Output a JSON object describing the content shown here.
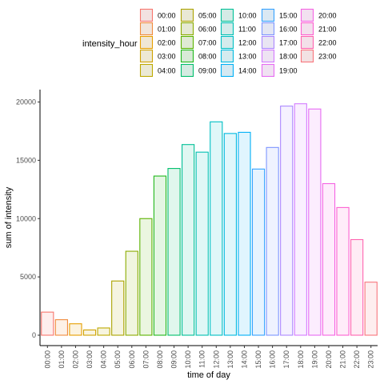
{
  "chart_data": {
    "type": "bar",
    "xlabel": "time of day",
    "ylabel": "sum of intensity",
    "ylim": [
      0,
      21000
    ],
    "yticks": [
      0,
      5000,
      10000,
      15000,
      20000
    ],
    "grid": false,
    "legend": {
      "title": "intensity_hour",
      "placement": "top",
      "ncol": 5
    },
    "categories": [
      "00:00",
      "01:00",
      "02:00",
      "03:00",
      "04:00",
      "05:00",
      "06:00",
      "07:00",
      "08:00",
      "09:00",
      "10:00",
      "11:00",
      "12:00",
      "13:00",
      "14:00",
      "15:00",
      "16:00",
      "17:00",
      "18:00",
      "19:00",
      "20:00",
      "21:00",
      "22:00",
      "23:00"
    ],
    "values": [
      1980,
      1330,
      980,
      450,
      620,
      4650,
      7200,
      10000,
      13650,
      14300,
      16350,
      15700,
      18300,
      17300,
      17400,
      14250,
      16100,
      19650,
      19850,
      19400,
      13000,
      10950,
      8200,
      4550
    ],
    "colors": [
      "#F8766D",
      "#F08B3D",
      "#E69F00",
      "#CFA200",
      "#BDA900",
      "#ABA300",
      "#8BAB00",
      "#5BB300",
      "#22B91C",
      "#00BE6C",
      "#00C097",
      "#00C0B2",
      "#00BFC4",
      "#00BADF",
      "#00B0F6",
      "#35A2FF",
      "#7E96FF",
      "#AC88FF",
      "#D47BFF",
      "#E76BF3",
      "#F564E3",
      "#FD61D1",
      "#FF64B0",
      "#F8767D"
    ]
  }
}
